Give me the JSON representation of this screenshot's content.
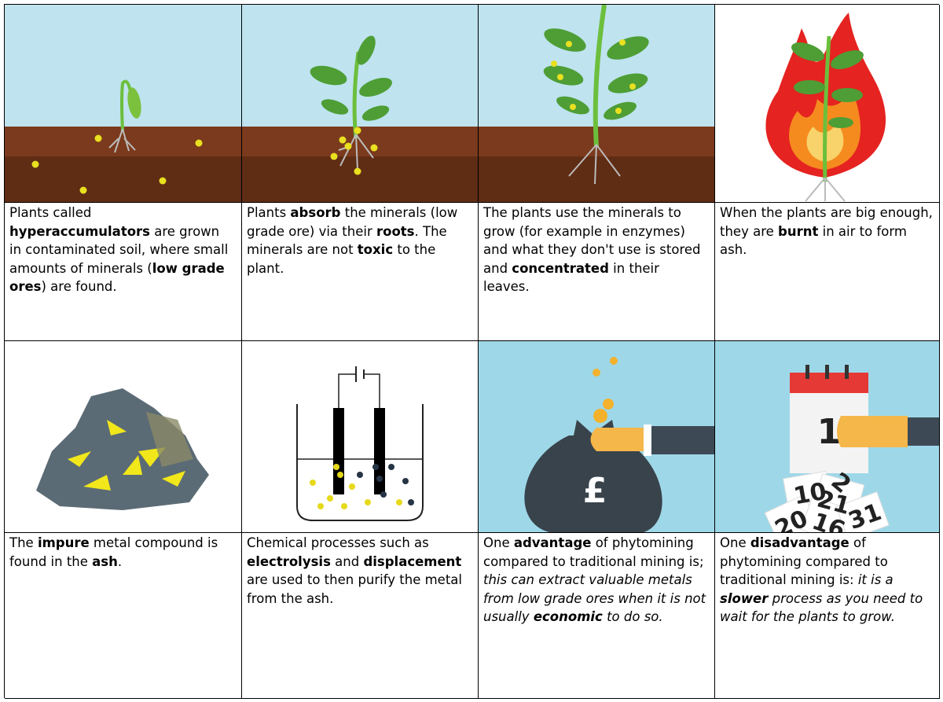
{
  "cells": [
    {
      "runs": [
        {
          "text": "Plants called "
        },
        {
          "text": "hyperaccumulators",
          "style": "bold"
        },
        {
          "text": " are grown in contaminated soil, where small amounts of minerals ("
        },
        {
          "text": "low grade ores",
          "style": "bold"
        },
        {
          "text": ") are found."
        }
      ]
    },
    {
      "runs": [
        {
          "text": "Plants "
        },
        {
          "text": "absorb",
          "style": "bold"
        },
        {
          "text": " the minerals (low grade ore) via their "
        },
        {
          "text": "roots",
          "style": "bold"
        },
        {
          "text": ". The minerals are not "
        },
        {
          "text": "toxic",
          "style": "bold"
        },
        {
          "text": " to the plant."
        }
      ]
    },
    {
      "runs": [
        {
          "text": "The plants use the minerals to grow (for example in enzymes) and what they don't use is stored and "
        },
        {
          "text": "concentrated",
          "style": "bold"
        },
        {
          "text": " in their leaves."
        }
      ]
    },
    {
      "runs": [
        {
          "text": "When the plants are big enough, they are "
        },
        {
          "text": "burnt",
          "style": "bold"
        },
        {
          "text": " in air to form ash."
        }
      ]
    },
    {
      "runs": [
        {
          "text": "The "
        },
        {
          "text": "impure",
          "style": "bold"
        },
        {
          "text": " metal compound is found in the "
        },
        {
          "text": "ash",
          "style": "bold"
        },
        {
          "text": "."
        }
      ]
    },
    {
      "runs": [
        {
          "text": "Chemical processes such as "
        },
        {
          "text": "electrolysis",
          "style": "bold"
        },
        {
          "text": " and "
        },
        {
          "text": "displacement",
          "style": "bold"
        },
        {
          "text": " are used to then purify the metal from the ash."
        }
      ]
    },
    {
      "runs": [
        {
          "text": "One "
        },
        {
          "text": "advantage",
          "style": "bold"
        },
        {
          "text": " of phytomining compared to traditional mining is; "
        },
        {
          "text": "this can extract valuable metals from low grade ores when it is not usually ",
          "style": "italic"
        },
        {
          "text": "economic",
          "style": "bold-italic"
        },
        {
          "text": " to do so.",
          "style": "italic"
        }
      ]
    },
    {
      "runs": [
        {
          "text": "One "
        },
        {
          "text": "disadvantage",
          "style": "bold"
        },
        {
          "text": " of phytomining compared to traditional mining is: "
        },
        {
          "text": "it is a ",
          "style": "italic"
        },
        {
          "text": "slower",
          "style": "bold-italic"
        },
        {
          "text": " process as you need to wait for the plants to grow.",
          "style": "italic"
        }
      ]
    }
  ],
  "images": {
    "money_symbol": "£",
    "calendar_day": "1",
    "dates": [
      "10",
      "2",
      "21",
      "20",
      "16",
      "31"
    ]
  }
}
